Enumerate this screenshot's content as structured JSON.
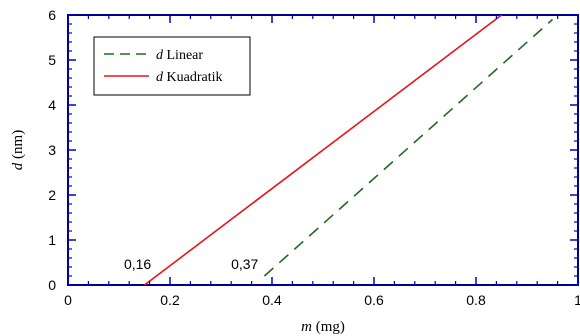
{
  "chart_data": {
    "type": "line",
    "xlabel": {
      "var": "m",
      "unit": " (mg)"
    },
    "ylabel": {
      "var": "d",
      "unit": " (nm)"
    },
    "xlim": [
      0,
      1
    ],
    "ylim": [
      0,
      6
    ],
    "x_ticks": [
      0,
      0.2,
      0.4,
      0.6,
      0.8,
      1
    ],
    "x_tick_labels": [
      "0",
      "0.2",
      "0.4",
      "0.6",
      "0.8",
      "1"
    ],
    "y_ticks": [
      0,
      1,
      2,
      3,
      4,
      5,
      6
    ],
    "y_tick_labels": [
      "0",
      "1",
      "2",
      "3",
      "4",
      "5",
      "6"
    ],
    "grid": false,
    "legend_position": "top-left",
    "series": [
      {
        "name": "d Linear",
        "legend_var": "d",
        "legend_rest": " Linear",
        "style": "dashed",
        "color": "#1f6b1f",
        "points": [
          [
            0.385,
            0.2
          ],
          [
            0.95,
            5.9
          ]
        ]
      },
      {
        "name": "d Kuadratik",
        "legend_var": "d",
        "legend_rest": " Kuadratik",
        "style": "solid",
        "color": "#e8141c",
        "points": [
          [
            0.15,
            0.0
          ],
          [
            0.85,
            6.0
          ]
        ]
      }
    ],
    "annotations": [
      {
        "text": "0,16",
        "x": 0.16,
        "y": 0
      },
      {
        "text": "0,37",
        "x": 0.37,
        "y": 0
      }
    ],
    "colors": {
      "frame": "#00008b",
      "ticks": "#0000cd"
    }
  }
}
